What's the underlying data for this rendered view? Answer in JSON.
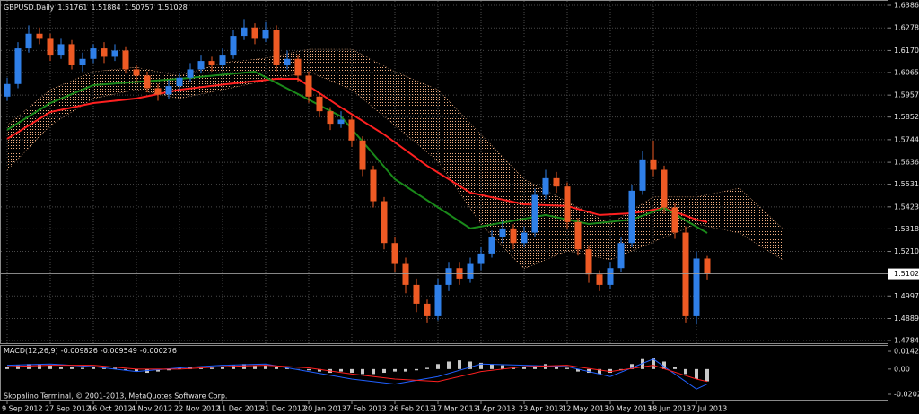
{
  "chart_data": [
    {
      "type": "candlestick",
      "title": "GBPUSD.Daily",
      "categories": [
        "9 Sep 2012",
        null,
        null,
        null,
        "27 Sep 2012",
        null,
        null,
        null,
        "16 Oct 2012",
        null,
        null,
        null,
        "4 Nov 2012",
        null,
        null,
        null,
        "22 Nov 2012",
        null,
        null,
        null,
        "11 Dec 2012",
        null,
        null,
        null,
        "31 Dec 2012",
        null,
        null,
        null,
        "20 Jan 2013",
        null,
        null,
        null,
        "7 Feb 2013",
        null,
        null,
        null,
        "26 Feb 2013",
        null,
        null,
        null,
        "17 Mar 2013",
        null,
        null,
        null,
        "4 Apr 2013",
        null,
        null,
        null,
        "23 Apr 2013",
        null,
        null,
        null,
        "12 May 2013",
        null,
        null,
        null,
        "30 May 2013",
        null,
        null,
        null,
        "18 Jun 2013",
        null,
        null,
        null,
        "7 Jul 2013",
        null
      ],
      "open": [
        1.595,
        1.601,
        1.618,
        1.625,
        1.623,
        1.615,
        1.62,
        1.61,
        1.613,
        1.618,
        1.614,
        1.617,
        1.608,
        1.605,
        1.599,
        1.596,
        1.6,
        1.604,
        1.608,
        1.612,
        1.61,
        1.615,
        1.624,
        1.628,
        1.623,
        1.627,
        1.61,
        1.613,
        1.605,
        1.595,
        1.588,
        1.582,
        1.584,
        1.574,
        1.56,
        1.545,
        1.525,
        1.515,
        1.505,
        1.496,
        1.49,
        1.505,
        1.513,
        1.508,
        1.515,
        1.52,
        1.528,
        1.532,
        1.525,
        1.53,
        1.548,
        1.556,
        1.552,
        1.535,
        1.522,
        1.51,
        1.505,
        1.513,
        1.525,
        1.55,
        1.565,
        1.56,
        1.542,
        1.53,
        1.49,
        1.51761
      ],
      "high": [
        1.604,
        1.621,
        1.629,
        1.628,
        1.625,
        1.623,
        1.622,
        1.616,
        1.62,
        1.621,
        1.62,
        1.619,
        1.61,
        1.607,
        1.601,
        1.603,
        1.606,
        1.611,
        1.615,
        1.614,
        1.618,
        1.627,
        1.632,
        1.63,
        1.631,
        1.629,
        1.617,
        1.615,
        1.607,
        1.597,
        1.59,
        1.588,
        1.586,
        1.576,
        1.562,
        1.547,
        1.528,
        1.518,
        1.508,
        1.498,
        1.508,
        1.516,
        1.516,
        1.518,
        1.523,
        1.531,
        1.536,
        1.534,
        1.533,
        1.551,
        1.56,
        1.559,
        1.554,
        1.537,
        1.524,
        1.512,
        1.516,
        1.528,
        1.553,
        1.569,
        1.574,
        1.562,
        1.544,
        1.533,
        1.521,
        1.51884
      ],
      "low": [
        1.593,
        1.599,
        1.616,
        1.62,
        1.612,
        1.613,
        1.608,
        1.607,
        1.611,
        1.611,
        1.612,
        1.606,
        1.602,
        1.597,
        1.593,
        1.594,
        1.598,
        1.602,
        1.606,
        1.607,
        1.608,
        1.613,
        1.622,
        1.62,
        1.621,
        1.607,
        1.608,
        1.602,
        1.592,
        1.585,
        1.579,
        1.58,
        1.571,
        1.557,
        1.542,
        1.522,
        1.511,
        1.501,
        1.492,
        1.487,
        1.488,
        1.502,
        1.505,
        1.506,
        1.512,
        1.518,
        1.525,
        1.522,
        1.523,
        1.528,
        1.546,
        1.549,
        1.532,
        1.519,
        1.506,
        1.502,
        1.503,
        1.511,
        1.523,
        1.548,
        1.557,
        1.539,
        1.527,
        1.487,
        1.486,
        1.50757
      ],
      "close": [
        1.601,
        1.618,
        1.625,
        1.623,
        1.615,
        1.62,
        1.61,
        1.613,
        1.618,
        1.614,
        1.617,
        1.608,
        1.605,
        1.599,
        1.596,
        1.6,
        1.604,
        1.608,
        1.612,
        1.61,
        1.615,
        1.624,
        1.628,
        1.623,
        1.627,
        1.61,
        1.613,
        1.605,
        1.595,
        1.588,
        1.582,
        1.584,
        1.574,
        1.56,
        1.545,
        1.525,
        1.515,
        1.505,
        1.496,
        1.49,
        1.505,
        1.513,
        1.508,
        1.515,
        1.52,
        1.528,
        1.532,
        1.525,
        1.53,
        1.548,
        1.556,
        1.552,
        1.535,
        1.522,
        1.51,
        1.505,
        1.513,
        1.525,
        1.55,
        1.565,
        1.56,
        1.542,
        1.53,
        1.49,
        1.5176,
        1.51028
      ],
      "up_color": "#2f7fe8",
      "down_color": "#ee5a24",
      "lines": [
        {
          "color": "#ff2020",
          "x": [
            0,
            4,
            8,
            12,
            16,
            21,
            25,
            27,
            31,
            35,
            39,
            43,
            48,
            52,
            55,
            58,
            61,
            64,
            65
          ],
          "values": [
            1.5748,
            1.5876,
            1.5919,
            1.5941,
            1.5983,
            1.6013,
            1.6035,
            1.6035,
            1.5898,
            1.5769,
            1.5619,
            1.5491,
            1.5435,
            1.5427,
            1.5384,
            1.5392,
            1.5418,
            1.5362,
            1.535
          ]
        },
        {
          "color": "#1a8a1a",
          "x": [
            0,
            4,
            8,
            16,
            23,
            31,
            36,
            43,
            50,
            54,
            58,
            61,
            65
          ],
          "values": [
            1.5791,
            1.5919,
            1.6005,
            1.6035,
            1.6069,
            1.5855,
            1.5555,
            1.532,
            1.5384,
            1.5341,
            1.5362,
            1.5418,
            1.5298
          ]
        }
      ],
      "cloud": {
        "color": "#f4b183",
        "x": [
          0,
          4,
          8,
          12,
          16,
          20,
          24,
          28,
          32,
          36,
          40,
          44,
          48,
          52,
          56,
          60,
          64,
          68,
          72
        ],
        "upper": [
          1.5812,
          1.5983,
          1.6069,
          1.609,
          1.6048,
          1.6112,
          1.6133,
          1.6176,
          1.6176,
          1.6069,
          1.5983,
          1.5769,
          1.5555,
          1.5448,
          1.5341,
          1.547,
          1.547,
          1.5512,
          1.532
        ],
        "lower": [
          1.5598,
          1.5812,
          1.5941,
          1.5983,
          1.5941,
          1.5983,
          1.6026,
          1.6069,
          1.5983,
          1.5812,
          1.5641,
          1.5341,
          1.5127,
          1.5213,
          1.517,
          1.5255,
          1.5341,
          1.5298,
          1.517
        ]
      },
      "ylim": [
        1.4784,
        1.6386
      ],
      "yticks": [
        {
          "value": 1.6386,
          "label": "1.63860"
        },
        {
          "value": 1.6278,
          "label": "1.62780"
        },
        {
          "value": 1.617,
          "label": "1.61700"
        },
        {
          "value": 1.6065,
          "label": "1.60650"
        },
        {
          "value": 1.5957,
          "label": "1.59570"
        },
        {
          "value": 1.5852,
          "label": "1.58520"
        },
        {
          "value": 1.5744,
          "label": "1.57440"
        },
        {
          "value": 1.5636,
          "label": "1.56360"
        },
        {
          "value": 1.5531,
          "label": "1.55310"
        },
        {
          "value": 1.5423,
          "label": "1.54230"
        },
        {
          "value": 1.5318,
          "label": "1.53180"
        },
        {
          "value": 1.521,
          "label": "1.52100"
        },
        {
          "value": 1.4997,
          "label": "1.49970"
        },
        {
          "value": 1.4889,
          "label": "1.48890"
        },
        {
          "value": 1.4784,
          "label": "1.47840"
        }
      ],
      "grid": true
    },
    {
      "type": "macd",
      "title": "MACD(12,26,9)",
      "readout": [
        -0.009826,
        -0.009549,
        -0.000276
      ],
      "values": [
        0.002,
        0.003,
        0.004,
        0.004,
        0.003,
        0.002,
        0.002,
        0.001,
        0.002,
        0.002,
        0.001,
        -0.001,
        -0.002,
        -0.003,
        -0.002,
        -0.001,
        0.001,
        0.002,
        0.002,
        0.001,
        0.002,
        0.003,
        0.004,
        0.003,
        0.003,
        0.002,
        0.001,
        0.0,
        -0.001,
        -0.002,
        -0.003,
        -0.002,
        -0.003,
        -0.004,
        -0.004,
        -0.003,
        -0.002,
        -0.002,
        -0.001,
        0.001,
        0.004,
        0.006,
        0.007,
        0.006,
        0.005,
        0.004,
        0.003,
        0.002,
        0.002,
        0.003,
        0.004,
        0.003,
        0.001,
        -0.002,
        -0.003,
        -0.004,
        -0.003,
        -0.001,
        0.004,
        0.008,
        0.009,
        0.006,
        0.002,
        -0.004,
        -0.008,
        -0.009826
      ],
      "color": "#c8c8c8",
      "series": [
        {
          "color": "#2060ff",
          "x": [
            0,
            4,
            8,
            12,
            16,
            20,
            24,
            28,
            32,
            36,
            40,
            44,
            48,
            52,
            56,
            60,
            64,
            65
          ],
          "values": [
            0.003,
            0.004,
            0.002,
            -0.002,
            0.001,
            0.003,
            0.004,
            -0.002,
            -0.008,
            -0.012,
            -0.006,
            0.004,
            0.003,
            0.002,
            -0.006,
            0.008,
            -0.016,
            -0.012
          ]
        },
        {
          "color": "#ff2020",
          "x": [
            0,
            4,
            8,
            12,
            16,
            20,
            24,
            28,
            32,
            36,
            40,
            44,
            48,
            52,
            56,
            60,
            64,
            65
          ],
          "values": [
            0.002,
            0.003,
            0.003,
            0.0,
            0.0,
            0.002,
            0.003,
            0.001,
            -0.004,
            -0.008,
            -0.01,
            -0.002,
            0.002,
            0.003,
            -0.002,
            0.003,
            -0.008,
            -0.01
          ]
        }
      ],
      "ylim": [
        -0.020201,
        0.014247
      ],
      "yticks": [
        0.014247,
        {
          "value": 0,
          "label": "0.00"
        },
        -0.020201
      ],
      "footer": "Skopalino Terminal, © 2001-2013, MetaQuotes Software Corp."
    }
  ]
}
